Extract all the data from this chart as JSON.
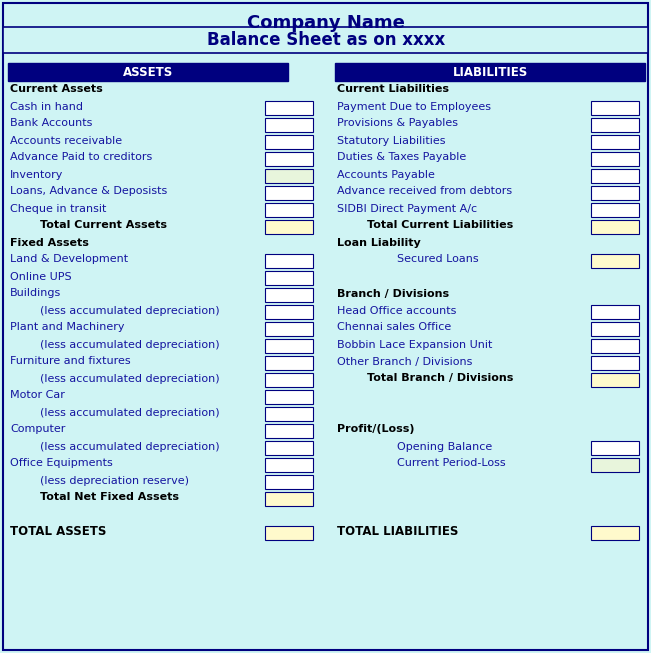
{
  "title1": "Company Name",
  "title2": "Balance Sheet as on xxxx",
  "bg_color": "#cff4f4",
  "header_bg": "#00007F",
  "header_fg": "#FFFFFF",
  "title_color": "#00007F",
  "border_color": "#00007F",
  "text_blue": "#1515A0",
  "text_black": "#000000",
  "box_white": "#FFFFFF",
  "box_yellow": "#FFFACC",
  "box_green": "#E8F5DC",
  "assets_header": "ASSETS",
  "liabilities_header": "LIABILITIES",
  "assets_rows": [
    {
      "label": "Current Assets",
      "indent": 0,
      "bold": true,
      "box": null
    },
    {
      "label": "Cash in hand",
      "indent": 0,
      "bold": false,
      "box": "white"
    },
    {
      "label": "Bank Accounts",
      "indent": 0,
      "bold": false,
      "box": "white"
    },
    {
      "label": "Accounts receivable",
      "indent": 0,
      "bold": false,
      "box": "white"
    },
    {
      "label": "Advance Paid to creditors",
      "indent": 0,
      "bold": false,
      "box": "white"
    },
    {
      "label": "Inventory",
      "indent": 0,
      "bold": false,
      "box": "green"
    },
    {
      "label": "Loans, Advance & Deposists",
      "indent": 0,
      "bold": false,
      "box": "white"
    },
    {
      "label": "Cheque in transit",
      "indent": 0,
      "bold": false,
      "box": "white"
    },
    {
      "label": "Total Current Assets",
      "indent": 1,
      "bold": true,
      "box": "yellow"
    },
    {
      "label": "Fixed Assets",
      "indent": 0,
      "bold": true,
      "box": null
    },
    {
      "label": "Land & Development",
      "indent": 0,
      "bold": false,
      "box": "white"
    },
    {
      "label": "Online UPS",
      "indent": 0,
      "bold": false,
      "box": "white"
    },
    {
      "label": "Buildings",
      "indent": 0,
      "bold": false,
      "box": "white"
    },
    {
      "label": "(less accumulated depreciation)",
      "indent": 1,
      "bold": false,
      "box": "white"
    },
    {
      "label": "Plant and Machinery",
      "indent": 0,
      "bold": false,
      "box": "white"
    },
    {
      "label": "(less accumulated depreciation)",
      "indent": 1,
      "bold": false,
      "box": "white"
    },
    {
      "label": "Furniture and fixtures",
      "indent": 0,
      "bold": false,
      "box": "white"
    },
    {
      "label": "(less accumulated depreciation)",
      "indent": 1,
      "bold": false,
      "box": "white"
    },
    {
      "label": "Motor Car",
      "indent": 0,
      "bold": false,
      "box": "white"
    },
    {
      "label": "(less accumulated depreciation)",
      "indent": 1,
      "bold": false,
      "box": "white"
    },
    {
      "label": "Computer",
      "indent": 0,
      "bold": false,
      "box": "white"
    },
    {
      "label": "(less accumulated depreciation)",
      "indent": 1,
      "bold": false,
      "box": "white"
    },
    {
      "label": "Office Equipments",
      "indent": 0,
      "bold": false,
      "box": "white"
    },
    {
      "label": "(less depreciation reserve)",
      "indent": 1,
      "bold": false,
      "box": "white"
    },
    {
      "label": "Total Net Fixed Assets",
      "indent": 1,
      "bold": true,
      "box": "yellow"
    },
    {
      "label": "",
      "indent": 0,
      "bold": false,
      "box": null
    },
    {
      "label": "TOTAL ASSETS",
      "indent": 0,
      "bold": true,
      "box": "yellow",
      "large": true
    }
  ],
  "liabilities_rows": [
    {
      "label": "Current Liabilities",
      "indent": 0,
      "bold": true,
      "box": null
    },
    {
      "label": "Payment Due to Employees",
      "indent": 0,
      "bold": false,
      "box": "white"
    },
    {
      "label": "Provisions & Payables",
      "indent": 0,
      "bold": false,
      "box": "white"
    },
    {
      "label": "Statutory Liabilities",
      "indent": 0,
      "bold": false,
      "box": "white"
    },
    {
      "label": "Duties & Taxes Payable",
      "indent": 0,
      "bold": false,
      "box": "white"
    },
    {
      "label": "Accounts Payable",
      "indent": 0,
      "bold": false,
      "box": "white"
    },
    {
      "label": "Advance received from debtors",
      "indent": 0,
      "bold": false,
      "box": "white"
    },
    {
      "label": "SIDBI Direct Payment A/c",
      "indent": 0,
      "bold": false,
      "box": "white"
    },
    {
      "label": "Total Current Liabilities",
      "indent": 1,
      "bold": true,
      "box": "yellow"
    },
    {
      "label": "Loan Liability",
      "indent": 0,
      "bold": true,
      "box": null
    },
    {
      "label": "Secured Loans",
      "indent": 2,
      "bold": false,
      "box": "yellow"
    },
    {
      "label": "",
      "indent": 0,
      "bold": false,
      "box": null
    },
    {
      "label": "Branch / Divisions",
      "indent": 0,
      "bold": true,
      "box": null
    },
    {
      "label": "Head Office accounts",
      "indent": 0,
      "bold": false,
      "box": "white"
    },
    {
      "label": "Chennai sales Office",
      "indent": 0,
      "bold": false,
      "box": "white"
    },
    {
      "label": "Bobbin Lace Expansion Unit",
      "indent": 0,
      "bold": false,
      "box": "white"
    },
    {
      "label": "Other Branch / Divisions",
      "indent": 0,
      "bold": false,
      "box": "white"
    },
    {
      "label": "Total Branch / Divisions",
      "indent": 1,
      "bold": true,
      "box": "yellow"
    },
    {
      "label": "",
      "indent": 0,
      "bold": false,
      "box": null
    },
    {
      "label": "",
      "indent": 0,
      "bold": false,
      "box": null
    },
    {
      "label": "Profit/(Loss)",
      "indent": 0,
      "bold": true,
      "box": null
    },
    {
      "label": "Opening Balance",
      "indent": 2,
      "bold": false,
      "box": "white"
    },
    {
      "label": "Current Period-Loss",
      "indent": 2,
      "bold": false,
      "box": "green"
    },
    {
      "label": "",
      "indent": 0,
      "bold": false,
      "box": null
    },
    {
      "label": "",
      "indent": 0,
      "bold": false,
      "box": null
    },
    {
      "label": "",
      "indent": 0,
      "bold": false,
      "box": null
    },
    {
      "label": "TOTAL LIABILITIES",
      "indent": 0,
      "bold": true,
      "box": "yellow",
      "large": true
    }
  ]
}
